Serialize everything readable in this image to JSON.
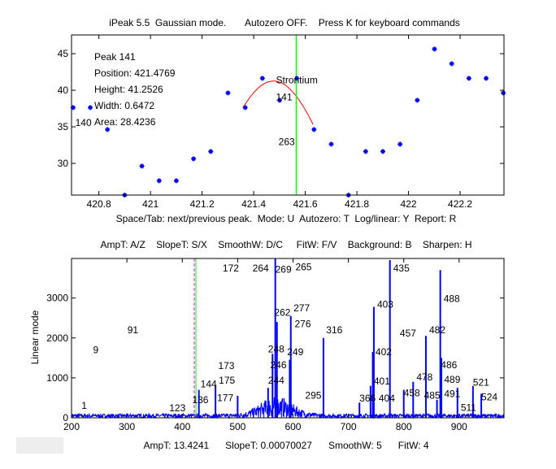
{
  "chart_data": [
    {
      "type": "scatter",
      "title": "iPeak 5.5  Gaussian mode.       Autozero OFF.    Press K for keyboard commands",
      "xlabel": "Space/Tab: next/previous peak.  Mode: U  Autozero: T  Log/linear: Y  Report: R",
      "ylabel": "",
      "xlim": [
        420.694,
        422.37
      ],
      "ylim": [
        25.67,
        47.56
      ],
      "xticks": [
        420.8,
        421,
        421.2,
        421.4,
        421.6,
        421.8,
        422,
        422.2
      ],
      "xtick_labels": [
        "420.8",
        "421",
        "421.2",
        "421.4",
        "421.6",
        "421.8",
        "422",
        "422.2"
      ],
      "yticks": [
        30,
        35,
        40,
        45
      ],
      "ytick_labels": [
        "30",
        "35",
        "40",
        "45"
      ],
      "points_x_start": 420.7,
      "points_x_step": 0.0667,
      "points_y": [
        37.63,
        37.63,
        34.63,
        25.67,
        29.63,
        27.63,
        27.63,
        30.63,
        31.63,
        39.63,
        37.63,
        41.63,
        38.63,
        41.63,
        34.63,
        32.63,
        25.67,
        31.63,
        31.63,
        32.63,
        38.63,
        45.63,
        43.63,
        41.63,
        41.63,
        39.63
      ],
      "fit": {
        "position": 421.4769,
        "height": 41.2526,
        "width": 0.6472,
        "range": [
          421.36,
          421.63
        ],
        "color": "#ff0000"
      },
      "cursor_x": 421.565,
      "info": [
        "Peak 141",
        "Position: 421.4769",
        "Height: 41.2526",
        "Width: 0.6472",
        "Area: 28.4236"
      ],
      "annotations": [
        {
          "text": "Strontium",
          "x": 421.48,
          "y": 40.7
        },
        {
          "text": "141",
          "x": 421.48,
          "y": 38.4
        },
        {
          "text": "140",
          "x": 420.74,
          "y": 34.9
        },
        {
          "text": "263",
          "x": 421.49,
          "y": 32.3
        }
      ],
      "point_color": "#0000ff",
      "cursor_color": "#00ff00"
    },
    {
      "type": "line",
      "title": "AmpT: A/Z    SlopeT: S/X    SmoothW: D/C     FitW: F/V    Background: B    Sharpen: H",
      "xlabel": "AmpT: 13.4241      SlopeT: 0.00070027      SmoothW: 5      FitW: 4",
      "ylabel": "Linear mode",
      "xlim": [
        200,
        981
      ],
      "ylim": [
        0,
        3990
      ],
      "xticks": [
        200,
        300,
        400,
        500,
        600,
        700,
        800,
        900
      ],
      "xtick_labels": [
        "200",
        "300",
        "400",
        "500",
        "600",
        "700",
        "800",
        "900"
      ],
      "yticks": [
        0,
        1000,
        2000,
        3000
      ],
      "ytick_labels": [
        "0",
        "1000",
        "2000",
        "3000"
      ],
      "cursor_x": 423.2,
      "peaks": [
        [
          568,
          3990
        ],
        [
          775,
          3950
        ],
        [
          866,
          3700
        ],
        [
          746,
          2780
        ],
        [
          596,
          2550
        ],
        [
          571,
          2400
        ],
        [
          655,
          2000
        ],
        [
          840,
          2050
        ],
        [
          563,
          1600
        ],
        [
          744,
          1650
        ],
        [
          594,
          1450
        ],
        [
          868,
          1500
        ],
        [
          740,
          800
        ],
        [
          460,
          800
        ],
        [
          500,
          550
        ],
        [
          817,
          900
        ],
        [
          897,
          750
        ],
        [
          925,
          800
        ],
        [
          940,
          600
        ],
        [
          800,
          700
        ],
        [
          430,
          700
        ],
        [
          555,
          750
        ],
        [
          720,
          380
        ],
        [
          860,
          450
        ]
      ],
      "labels": [
        {
          "text": "172",
          "x": 470,
          "y": 4030
        },
        {
          "text": "269",
          "x": 565,
          "y": 4000
        },
        {
          "text": "265",
          "x": 575,
          "y": 3980
        },
        {
          "text": "264",
          "x": 568,
          "y": 3950
        },
        {
          "text": "435",
          "x": 778,
          "y": 3950
        },
        {
          "text": "488",
          "x": 869,
          "y": 2860
        },
        {
          "text": "403",
          "x": 749,
          "y": 2720
        },
        {
          "text": "277",
          "x": 598,
          "y": 2630
        },
        {
          "text": "276",
          "x": 600,
          "y": 2550
        },
        {
          "text": "262",
          "x": 572,
          "y": 2510
        },
        {
          "text": "316",
          "x": 657,
          "y": 2080
        },
        {
          "text": "457",
          "x": 790,
          "y": 2000
        },
        {
          "text": "482",
          "x": 843,
          "y": 2080
        },
        {
          "text": "91",
          "x": 298,
          "y": 2080
        },
        {
          "text": "9",
          "x": 236,
          "y": 1580
        },
        {
          "text": "248",
          "x": 552,
          "y": 1600
        },
        {
          "text": "246",
          "x": 556,
          "y": 1530
        },
        {
          "text": "249",
          "x": 560,
          "y": 1450
        },
        {
          "text": "402",
          "x": 746,
          "y": 1530
        },
        {
          "text": "173",
          "x": 462,
          "y": 1180
        },
        {
          "text": "486",
          "x": 864,
          "y": 1200
        },
        {
          "text": "489",
          "x": 870,
          "y": 1080
        },
        {
          "text": "491",
          "x": 870,
          "y": 800
        },
        {
          "text": "478",
          "x": 820,
          "y": 900
        },
        {
          "text": "144",
          "x": 430,
          "y": 720
        },
        {
          "text": "175",
          "x": 463,
          "y": 810
        },
        {
          "text": "401",
          "x": 743,
          "y": 790
        },
        {
          "text": "244",
          "x": 552,
          "y": 810
        },
        {
          "text": "521",
          "x": 922,
          "y": 760
        },
        {
          "text": "524",
          "x": 937,
          "y": 560
        },
        {
          "text": "458",
          "x": 797,
          "y": 580
        },
        {
          "text": "136",
          "x": 415,
          "y": 490
        },
        {
          "text": "177",
          "x": 460,
          "y": 540
        },
        {
          "text": "295",
          "x": 619,
          "y": 440
        },
        {
          "text": "366",
          "x": 717,
          "y": 370
        },
        {
          "text": "404",
          "x": 743,
          "y": 370
        },
        {
          "text": "485",
          "x": 860,
          "y": 440
        },
        {
          "text": "511",
          "x": 900,
          "y": 380
        },
        {
          "text": "1",
          "x": 215,
          "y": 180
        },
        {
          "text": "123",
          "x": 400,
          "y": 120
        }
      ],
      "line_color": "#0000ff",
      "cursor_colors": [
        "#ff00ff",
        "#00ff00"
      ]
    }
  ]
}
